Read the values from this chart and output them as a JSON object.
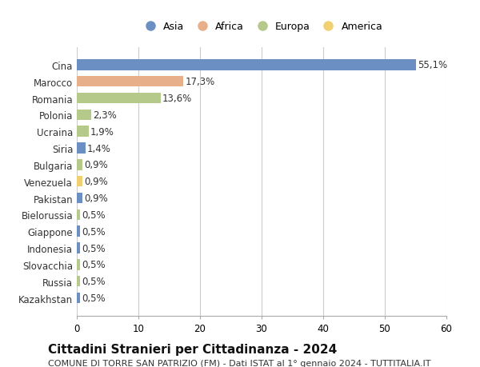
{
  "countries": [
    "Cina",
    "Marocco",
    "Romania",
    "Polonia",
    "Ucraina",
    "Siria",
    "Bulgaria",
    "Venezuela",
    "Pakistan",
    "Bielorussia",
    "Giappone",
    "Indonesia",
    "Slovacchia",
    "Russia",
    "Kazakhstan"
  ],
  "values": [
    55.1,
    17.3,
    13.6,
    2.3,
    1.9,
    1.4,
    0.9,
    0.9,
    0.9,
    0.5,
    0.5,
    0.5,
    0.5,
    0.5,
    0.5
  ],
  "labels": [
    "55,1%",
    "17,3%",
    "13,6%",
    "2,3%",
    "1,9%",
    "1,4%",
    "0,9%",
    "0,9%",
    "0,9%",
    "0,5%",
    "0,5%",
    "0,5%",
    "0,5%",
    "0,5%",
    "0,5%"
  ],
  "continents": [
    "Asia",
    "Africa",
    "Europa",
    "Europa",
    "Europa",
    "Asia",
    "Europa",
    "America",
    "Asia",
    "Europa",
    "Asia",
    "Asia",
    "Europa",
    "Europa",
    "Asia"
  ],
  "colors": {
    "Asia": "#6b8fc2",
    "Africa": "#e8b08a",
    "Europa": "#b5c98a",
    "America": "#f0d070"
  },
  "legend_order": [
    "Asia",
    "Africa",
    "Europa",
    "America"
  ],
  "xlim": [
    0,
    60
  ],
  "xticks": [
    0,
    10,
    20,
    30,
    40,
    50,
    60
  ],
  "title": "Cittadini Stranieri per Cittadinanza - 2024",
  "subtitle": "COMUNE DI TORRE SAN PATRIZIO (FM) - Dati ISTAT al 1° gennaio 2024 - TUTTITALIA.IT",
  "background_color": "#ffffff",
  "grid_color": "#cccccc",
  "bar_height": 0.65,
  "label_fontsize": 8.5,
  "tick_fontsize": 8.5,
  "title_fontsize": 11,
  "subtitle_fontsize": 8
}
